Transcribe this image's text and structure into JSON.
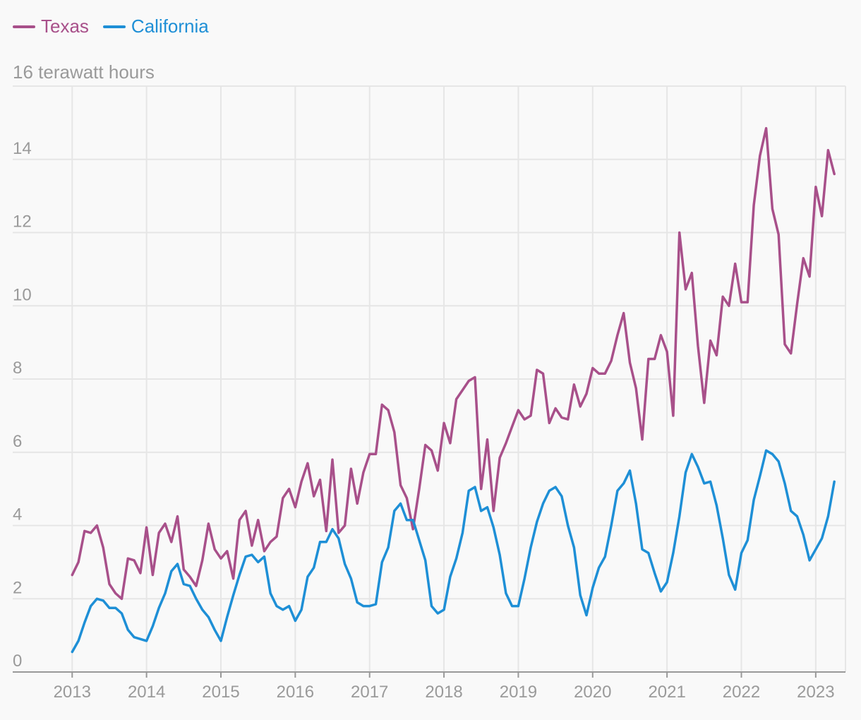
{
  "legend": {
    "texas_label": "Texas",
    "california_label": "California"
  },
  "colors": {
    "texas": "#a8508a",
    "california": "#1e8fd6",
    "grid": "#e6e6e6",
    "axis": "#999999"
  },
  "chart_data": {
    "type": "line",
    "title": "",
    "ylabel": "16 terawatt hours",
    "xlabel": "",
    "ylim": [
      0,
      16
    ],
    "yticks": [
      0,
      2,
      4,
      6,
      8,
      10,
      12,
      14
    ],
    "ytick_labels": [
      "0",
      "2",
      "4",
      "6",
      "8",
      "10",
      "12",
      "14"
    ],
    "xlim": [
      2012.2,
      2023.4
    ],
    "xticks": [
      2013,
      2014,
      2015,
      2016,
      2017,
      2018,
      2019,
      2020,
      2021,
      2022,
      2023
    ],
    "xtick_labels": [
      "2013",
      "2014",
      "2015",
      "2016",
      "2017",
      "2018",
      "2019",
      "2020",
      "2021",
      "2022",
      "2023"
    ],
    "grid": true,
    "start_year": 2013,
    "series": [
      {
        "name": "Texas",
        "values": [
          2.65,
          3.0,
          3.85,
          3.8,
          4.0,
          3.4,
          2.4,
          2.15,
          2.0,
          3.1,
          3.05,
          2.7,
          3.95,
          2.65,
          3.8,
          4.05,
          3.55,
          4.25,
          2.8,
          2.6,
          2.35,
          3.05,
          4.05,
          3.35,
          3.1,
          3.3,
          2.55,
          4.15,
          4.4,
          3.45,
          4.15,
          3.3,
          3.55,
          3.7,
          4.75,
          5.0,
          4.5,
          5.2,
          5.7,
          4.8,
          5.25,
          3.85,
          5.8,
          3.8,
          4.0,
          5.55,
          4.6,
          5.45,
          5.95,
          5.95,
          7.3,
          7.15,
          6.55,
          5.1,
          4.75,
          3.9,
          5.0,
          6.2,
          6.05,
          5.5,
          6.8,
          6.25,
          7.45,
          7.7,
          7.95,
          8.05,
          5.0,
          6.35,
          4.4,
          5.85,
          6.25,
          6.7,
          7.15,
          6.9,
          7.0,
          8.25,
          8.15,
          6.8,
          7.2,
          6.95,
          6.9,
          7.85,
          7.25,
          7.6,
          8.3,
          8.15,
          8.15,
          8.5,
          9.2,
          9.8,
          8.45,
          7.75,
          6.35,
          8.55,
          8.55,
          9.2,
          8.75,
          7.0,
          12.0,
          10.45,
          10.9,
          8.9,
          7.35,
          9.05,
          8.65,
          10.25,
          10.0,
          11.15,
          10.1,
          10.1,
          12.75,
          14.1,
          14.85,
          12.65,
          11.95,
          8.95,
          8.7,
          10.05,
          11.3,
          10.8,
          13.25,
          12.45,
          14.25,
          13.6
        ]
      },
      {
        "name": "California",
        "values": [
          0.55,
          0.85,
          1.35,
          1.8,
          2.0,
          1.95,
          1.75,
          1.75,
          1.6,
          1.15,
          0.95,
          0.9,
          0.85,
          1.25,
          1.75,
          2.15,
          2.75,
          2.95,
          2.4,
          2.35,
          2.0,
          1.7,
          1.5,
          1.15,
          0.85,
          1.5,
          2.1,
          2.65,
          3.15,
          3.2,
          3.0,
          3.15,
          2.15,
          1.8,
          1.7,
          1.8,
          1.4,
          1.7,
          2.6,
          2.85,
          3.55,
          3.55,
          3.9,
          3.65,
          2.95,
          2.55,
          1.9,
          1.8,
          1.8,
          1.85,
          3.0,
          3.4,
          4.4,
          4.6,
          4.15,
          4.15,
          3.6,
          3.05,
          1.8,
          1.6,
          1.7,
          2.6,
          3.1,
          3.8,
          4.95,
          5.05,
          4.4,
          4.5,
          3.95,
          3.2,
          2.15,
          1.8,
          1.8,
          2.55,
          3.4,
          4.1,
          4.6,
          4.95,
          5.05,
          4.8,
          4.0,
          3.4,
          2.1,
          1.55,
          2.3,
          2.85,
          3.15,
          4.0,
          4.95,
          5.15,
          5.5,
          4.6,
          3.35,
          3.25,
          2.7,
          2.2,
          2.45,
          3.25,
          4.25,
          5.45,
          5.95,
          5.6,
          5.15,
          5.2,
          4.55,
          3.65,
          2.65,
          2.25,
          3.25,
          3.6,
          4.7,
          5.35,
          6.05,
          5.95,
          5.75,
          5.15,
          4.4,
          4.25,
          3.75,
          3.05,
          3.35,
          3.65,
          4.25,
          5.2
        ]
      }
    ]
  }
}
